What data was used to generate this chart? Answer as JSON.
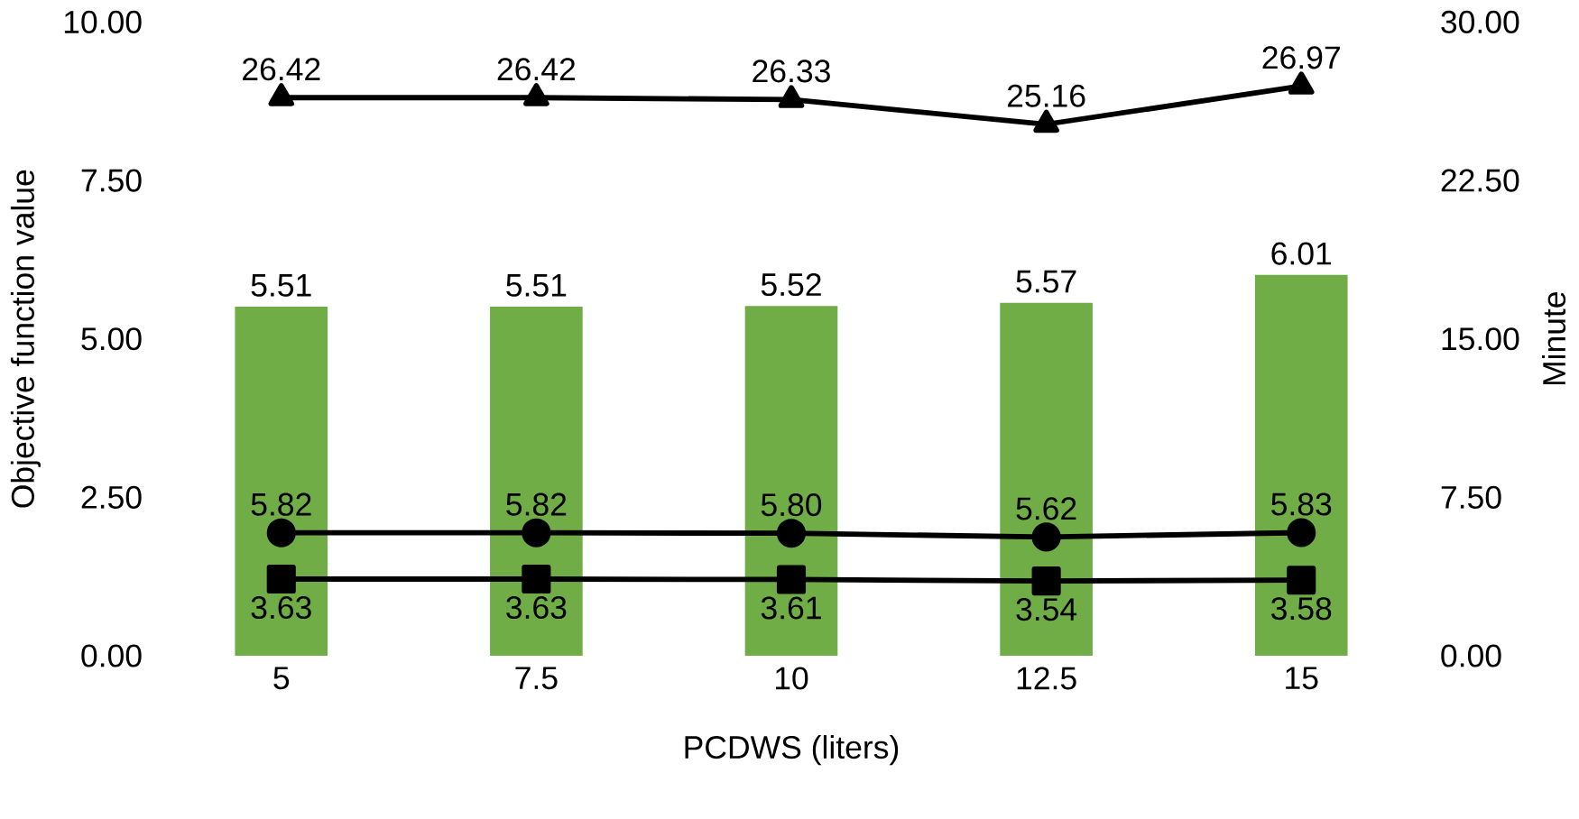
{
  "chart_data": {
    "type": "bar",
    "xlabel": "PCDWS (liters)",
    "ylabel": "Objective function value",
    "y2label": "Minute",
    "categories": [
      "5",
      "7.5",
      "10",
      "12.5",
      "15"
    ],
    "series": [
      {
        "color": "#70ad47",
        "values": [
          5.51,
          5.51,
          5.52,
          5.57,
          6.01
        ],
        "value_labels": [
          "5.51",
          "5.51",
          "5.52",
          "5.57",
          "6.01"
        ]
      },
      {
        "type": "line",
        "axis": "y2",
        "color": "#000000",
        "marker": "triangle",
        "values": [
          26.42,
          26.42,
          26.33,
          25.16,
          26.97
        ],
        "value_labels": [
          "26.42",
          "26.42",
          "26.33",
          "25.16",
          "26.97"
        ]
      },
      {
        "type": "line",
        "axis": "y2",
        "color": "#000000",
        "marker": "circle",
        "values": [
          5.82,
          5.82,
          5.8,
          5.62,
          5.83
        ],
        "value_labels": [
          "5.82",
          "5.82",
          "5.80",
          "5.62",
          "5.83"
        ]
      },
      {
        "type": "line",
        "axis": "y2",
        "color": "#000000",
        "marker": "square",
        "values": [
          3.63,
          3.63,
          3.61,
          3.54,
          3.58
        ],
        "value_labels": [
          "3.63",
          "3.63",
          "3.61",
          "3.54",
          "3.58"
        ]
      }
    ],
    "ylim": [
      0,
      10
    ],
    "yticks": [
      {
        "value": 0,
        "label": "0.00"
      },
      {
        "value": 2.5,
        "label": "2.50"
      },
      {
        "value": 5,
        "label": "5.00"
      },
      {
        "value": 7.5,
        "label": "7.50"
      },
      {
        "value": 10,
        "label": "10.00"
      }
    ],
    "y2lim": [
      0,
      30
    ],
    "y2ticks": [
      {
        "value": 0,
        "label": "0.00"
      },
      {
        "value": 7.5,
        "label": "7.50"
      },
      {
        "value": 15,
        "label": "15.00"
      },
      {
        "value": 22.5,
        "label": "22.50"
      },
      {
        "value": 30,
        "label": "30.00"
      }
    ],
    "grid": false,
    "line_style": "solid"
  }
}
